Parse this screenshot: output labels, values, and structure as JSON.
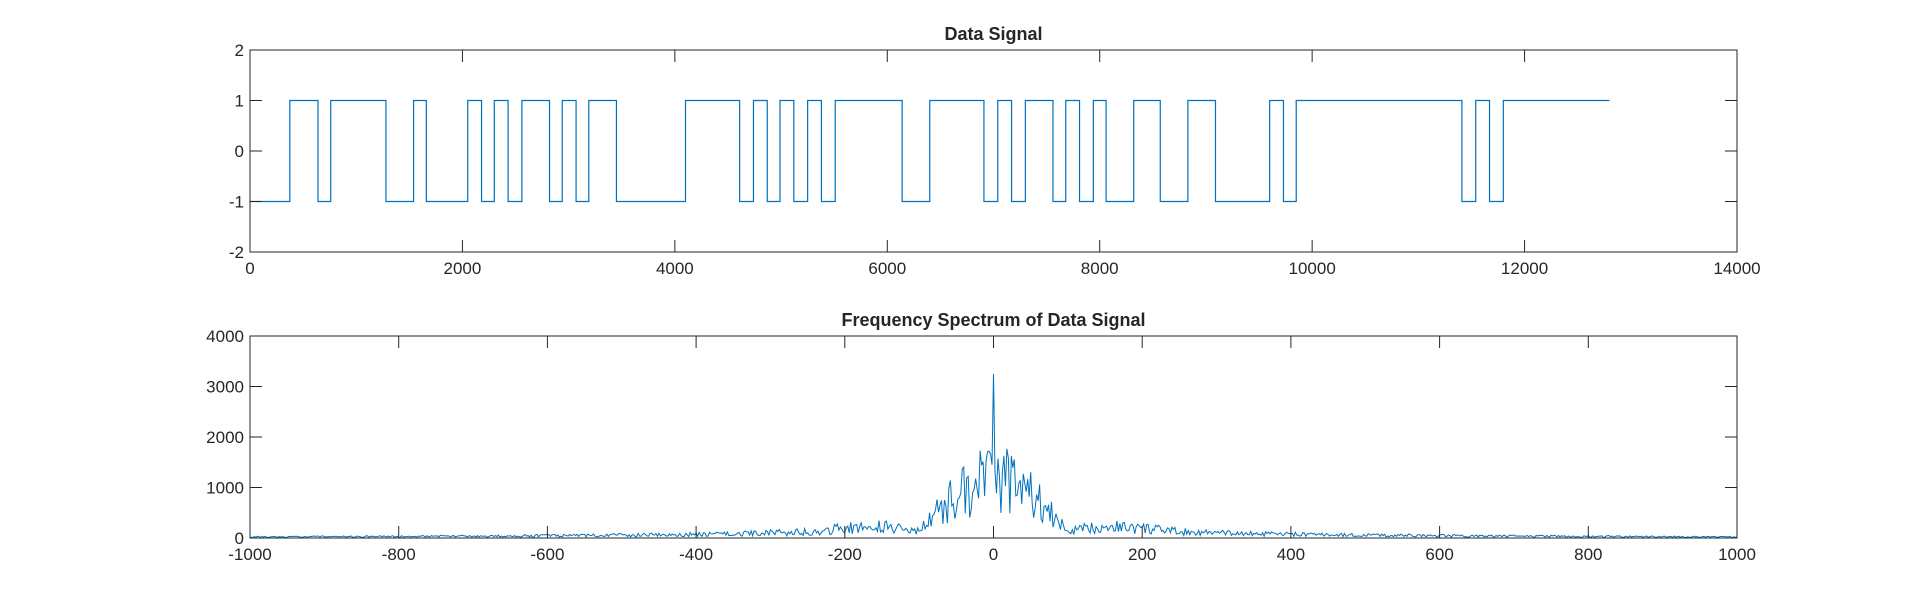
{
  "chart_data": [
    {
      "type": "line",
      "title": "Data Signal",
      "xlabel": "",
      "ylabel": "",
      "xlim": [
        0,
        14000
      ],
      "ylim": [
        -2,
        2
      ],
      "xticks": [
        0,
        2000,
        4000,
        6000,
        8000,
        10000,
        12000,
        14000
      ],
      "yticks": [
        -2,
        -1,
        0,
        1,
        2
      ],
      "xtick_labels": [
        "0",
        "2000",
        "4000",
        "6000",
        "8000",
        "10000",
        "12000",
        "14000"
      ],
      "ytick_labels": [
        "-2",
        "-1",
        "0",
        "1",
        "2"
      ],
      "line_color": "#0072BD",
      "grid": false,
      "transitions": [
        375,
        640,
        760,
        1280,
        1540,
        1660,
        2050,
        2180,
        2300,
        2430,
        2560,
        2820,
        2940,
        3070,
        3190,
        3450,
        4100,
        4610,
        4740,
        4870,
        4990,
        5120,
        5250,
        5380,
        5510,
        6140,
        6400,
        6910,
        7040,
        7170,
        7300,
        7560,
        7680,
        7810,
        7940,
        8060,
        8320,
        8570,
        8830,
        9090,
        9600,
        9730,
        9850,
        11410,
        11540,
        11670,
        11800
      ],
      "start_value": -1,
      "x_end": 12800
    },
    {
      "type": "line",
      "title": "Frequency Spectrum of Data Signal",
      "xlabel": "",
      "ylabel": "",
      "xlim": [
        -1000,
        1000
      ],
      "ylim": [
        0,
        4000
      ],
      "xticks": [
        -1000,
        -800,
        -600,
        -400,
        -200,
        0,
        200,
        400,
        600,
        800,
        1000
      ],
      "yticks": [
        0,
        1000,
        2000,
        3000,
        4000
      ],
      "xtick_labels": [
        "-1000",
        "-800",
        "-600",
        "-400",
        "-200",
        "0",
        "200",
        "400",
        "600",
        "800",
        "1000"
      ],
      "ytick_labels": [
        "0",
        "1000",
        "2000",
        "3000",
        "4000"
      ],
      "line_color": "#0072BD",
      "grid": false,
      "x_step": 2,
      "peak": {
        "x": 0,
        "y": 3250
      },
      "lobe_envelope": [
        {
          "x": 0,
          "y": 2000
        },
        {
          "x": 50,
          "y": 1400
        },
        {
          "x": 100,
          "y": 200
        },
        {
          "x": 150,
          "y": 400
        },
        {
          "x": 250,
          "y": 200
        },
        {
          "x": 350,
          "y": 130
        },
        {
          "x": 450,
          "y": 100
        },
        {
          "x": 550,
          "y": 80
        },
        {
          "x": 650,
          "y": 65
        },
        {
          "x": 750,
          "y": 55
        },
        {
          "x": 850,
          "y": 45
        },
        {
          "x": 950,
          "y": 40
        },
        {
          "x": 1000,
          "y": 30
        }
      ]
    }
  ]
}
